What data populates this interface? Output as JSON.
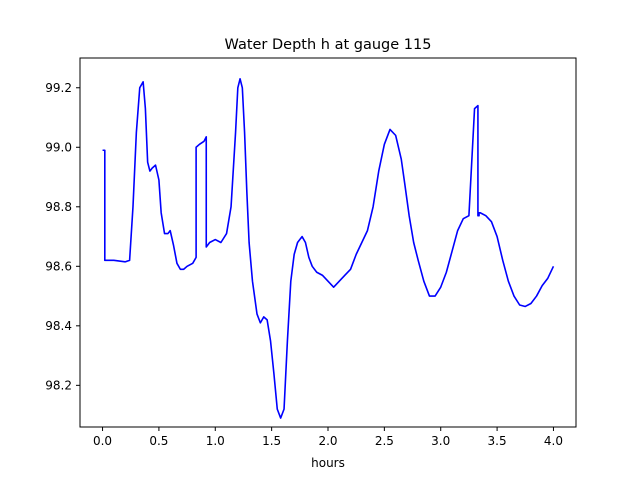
{
  "chart_data": {
    "type": "line",
    "title": "Water Depth h at gauge 115",
    "xlabel": "hours",
    "ylabel": "",
    "xlim": [
      -0.2,
      4.2
    ],
    "ylim": [
      98.06,
      99.3
    ],
    "xticks": [
      0.0,
      0.5,
      1.0,
      1.5,
      2.0,
      2.5,
      3.0,
      3.5,
      4.0
    ],
    "xtick_labels": [
      "0.0",
      "0.5",
      "1.0",
      "1.5",
      "2.0",
      "2.5",
      "3.0",
      "3.5",
      "4.0"
    ],
    "yticks": [
      98.2,
      98.4,
      98.6,
      98.8,
      99.0,
      99.2
    ],
    "ytick_labels": [
      "98.2",
      "98.4",
      "98.6",
      "98.8",
      "99.0",
      "99.2"
    ],
    "grid": false,
    "series": [
      {
        "color": "#0000ff",
        "x": [
          0.0,
          0.02,
          0.02,
          0.1,
          0.2,
          0.24,
          0.27,
          0.3,
          0.33,
          0.36,
          0.38,
          0.4,
          0.42,
          0.44,
          0.47,
          0.5,
          0.52,
          0.55,
          0.58,
          0.6,
          0.63,
          0.66,
          0.69,
          0.72,
          0.75,
          0.8,
          0.83,
          0.83,
          0.86,
          0.9,
          0.92,
          0.92,
          0.95,
          1.0,
          1.05,
          1.1,
          1.14,
          1.18,
          1.2,
          1.22,
          1.24,
          1.26,
          1.28,
          1.3,
          1.33,
          1.37,
          1.4,
          1.43,
          1.46,
          1.49,
          1.52,
          1.55,
          1.58,
          1.61,
          1.64,
          1.67,
          1.7,
          1.73,
          1.77,
          1.8,
          1.83,
          1.86,
          1.9,
          1.95,
          2.0,
          2.05,
          2.1,
          2.15,
          2.2,
          2.25,
          2.3,
          2.35,
          2.4,
          2.45,
          2.5,
          2.55,
          2.6,
          2.65,
          2.68,
          2.72,
          2.76,
          2.8,
          2.85,
          2.9,
          2.95,
          3.0,
          3.05,
          3.1,
          3.15,
          3.2,
          3.25,
          3.3,
          3.33,
          3.33,
          3.34,
          3.34,
          3.35,
          3.4,
          3.45,
          3.5,
          3.55,
          3.6,
          3.65,
          3.7,
          3.75,
          3.8,
          3.85,
          3.9,
          3.95,
          4.0
        ],
        "y": [
          98.99,
          98.99,
          98.62,
          98.62,
          98.615,
          98.62,
          98.8,
          99.05,
          99.2,
          99.22,
          99.13,
          98.95,
          98.92,
          98.93,
          98.94,
          98.89,
          98.78,
          98.71,
          98.71,
          98.72,
          98.67,
          98.61,
          98.59,
          98.59,
          98.6,
          98.61,
          98.63,
          99.0,
          99.01,
          99.02,
          99.035,
          98.665,
          98.68,
          98.69,
          98.68,
          98.71,
          98.8,
          99.05,
          99.2,
          99.23,
          99.2,
          99.05,
          98.85,
          98.68,
          98.55,
          98.44,
          98.41,
          98.43,
          98.42,
          98.35,
          98.24,
          98.12,
          98.09,
          98.12,
          98.35,
          98.55,
          98.64,
          98.68,
          98.7,
          98.68,
          98.63,
          98.6,
          98.58,
          98.57,
          98.55,
          98.53,
          98.55,
          98.57,
          98.59,
          98.64,
          98.68,
          98.72,
          98.8,
          98.92,
          99.01,
          99.06,
          99.04,
          98.96,
          98.88,
          98.77,
          98.68,
          98.62,
          98.55,
          98.5,
          98.5,
          98.53,
          98.58,
          98.65,
          98.72,
          98.76,
          98.77,
          99.13,
          99.14,
          98.77,
          98.77,
          98.78,
          98.78,
          98.77,
          98.75,
          98.7,
          98.62,
          98.55,
          98.5,
          98.47,
          98.465,
          98.475,
          98.5,
          98.535,
          98.56,
          98.6
        ]
      }
    ]
  }
}
